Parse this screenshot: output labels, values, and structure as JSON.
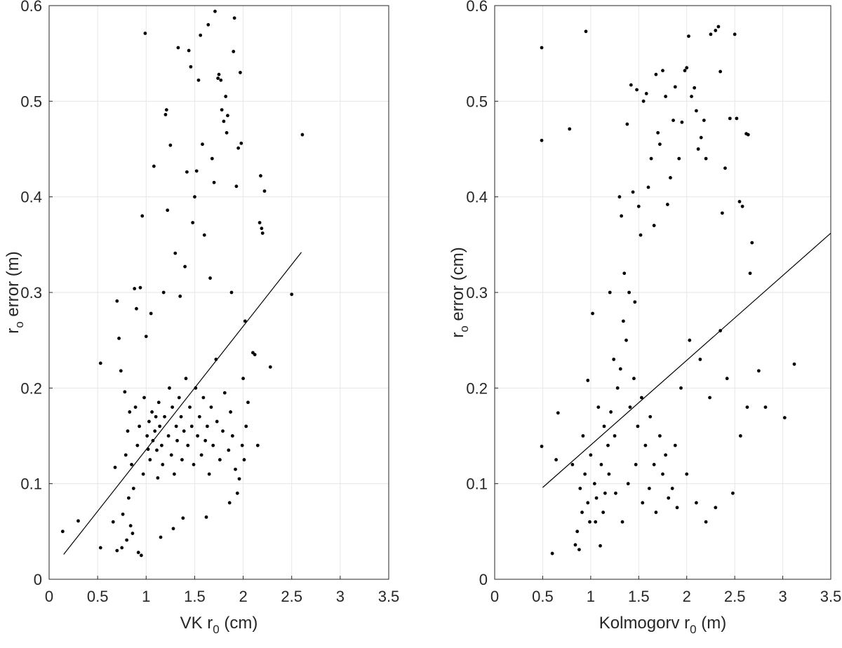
{
  "chart_data": [
    {
      "type": "scatter",
      "xlabel": "VK  r",
      "xlabel_sub": "0",
      "xlabel_unit": " (cm)",
      "ylabel": "r",
      "ylabel_sub": "o",
      "ylabel_rest": " error (m)",
      "xlim": [
        0,
        3.5
      ],
      "ylim": [
        0,
        0.6
      ],
      "xticks": [
        0,
        0.5,
        1,
        1.5,
        2,
        2.5,
        3,
        3.5
      ],
      "xtick_labels": [
        "0",
        "0.5",
        "1",
        "1.5",
        "2",
        "2.5",
        "3",
        "3.5"
      ],
      "yticks": [
        0,
        0.1,
        0.2,
        0.3,
        0.4,
        0.5,
        0.6
      ],
      "ytick_labels": [
        "0",
        "0.1",
        "0.2",
        "0.3",
        "0.4",
        "0.5",
        "0.6"
      ],
      "grid": true,
      "marker_color": "#000000",
      "line_color": "#000000",
      "fit_line": {
        "x": [
          0.15,
          2.6
        ],
        "y": [
          0.026,
          0.342
        ]
      },
      "points": [
        [
          0.14,
          0.05
        ],
        [
          0.3,
          0.061
        ],
        [
          0.53,
          0.033
        ],
        [
          0.53,
          0.226
        ],
        [
          0.66,
          0.06
        ],
        [
          0.68,
          0.117
        ],
        [
          0.7,
          0.291
        ],
        [
          0.72,
          0.252
        ],
        [
          0.74,
          0.218
        ],
        [
          0.75,
          0.033
        ],
        [
          0.78,
          0.196
        ],
        [
          0.8,
          0.041
        ],
        [
          0.82,
          0.085
        ],
        [
          0.84,
          0.056
        ],
        [
          0.86,
          0.048
        ],
        [
          0.88,
          0.304
        ],
        [
          0.9,
          0.283
        ],
        [
          0.92,
          0.028
        ],
        [
          0.94,
          0.305
        ],
        [
          0.95,
          0.025
        ],
        [
          0.96,
          0.38
        ],
        [
          0.99,
          0.571
        ],
        [
          1.0,
          0.254
        ],
        [
          1.02,
          0.136
        ],
        [
          1.05,
          0.278
        ],
        [
          1.08,
          0.432
        ],
        [
          1.1,
          0.17
        ],
        [
          1.12,
          0.106
        ],
        [
          1.15,
          0.044
        ],
        [
          1.18,
          0.3
        ],
        [
          1.2,
          0.486
        ],
        [
          1.21,
          0.491
        ],
        [
          1.22,
          0.386
        ],
        [
          1.25,
          0.454
        ],
        [
          1.28,
          0.053
        ],
        [
          1.3,
          0.341
        ],
        [
          1.33,
          0.556
        ],
        [
          1.35,
          0.296
        ],
        [
          1.38,
          0.064
        ],
        [
          1.4,
          0.327
        ],
        [
          1.42,
          0.426
        ],
        [
          1.44,
          0.553
        ],
        [
          1.46,
          0.536
        ],
        [
          1.48,
          0.373
        ],
        [
          1.5,
          0.4
        ],
        [
          1.52,
          0.427
        ],
        [
          1.54,
          0.522
        ],
        [
          1.56,
          0.569
        ],
        [
          1.58,
          0.455
        ],
        [
          1.6,
          0.36
        ],
        [
          1.62,
          0.065
        ],
        [
          1.64,
          0.58
        ],
        [
          1.66,
          0.315
        ],
        [
          1.68,
          0.44
        ],
        [
          1.7,
          0.415
        ],
        [
          1.71,
          0.594
        ],
        [
          1.72,
          0.23
        ],
        [
          1.74,
          0.524
        ],
        [
          1.75,
          0.528
        ],
        [
          1.77,
          0.522
        ],
        [
          1.78,
          0.491
        ],
        [
          1.8,
          0.479
        ],
        [
          1.82,
          0.505
        ],
        [
          1.83,
          0.467
        ],
        [
          1.84,
          0.485
        ],
        [
          1.86,
          0.08
        ],
        [
          1.88,
          0.3
        ],
        [
          1.9,
          0.552
        ],
        [
          1.91,
          0.587
        ],
        [
          1.93,
          0.411
        ],
        [
          1.95,
          0.451
        ],
        [
          1.97,
          0.53
        ],
        [
          1.98,
          0.456
        ],
        [
          2.0,
          0.21
        ],
        [
          2.02,
          0.27
        ],
        [
          2.05,
          0.185
        ],
        [
          2.1,
          0.237
        ],
        [
          2.12,
          0.235
        ],
        [
          2.15,
          0.14
        ],
        [
          2.17,
          0.373
        ],
        [
          2.18,
          0.422
        ],
        [
          2.19,
          0.367
        ],
        [
          2.2,
          0.362
        ],
        [
          2.22,
          0.406
        ],
        [
          2.28,
          0.222
        ],
        [
          2.5,
          0.298
        ],
        [
          2.61,
          0.465
        ],
        [
          1.96,
          0.105
        ],
        [
          1.94,
          0.09
        ],
        [
          2.01,
          0.125
        ],
        [
          0.7,
          0.03
        ],
        [
          0.76,
          0.068
        ],
        [
          0.79,
          0.13
        ],
        [
          0.81,
          0.155
        ],
        [
          0.83,
          0.175
        ],
        [
          0.85,
          0.12
        ],
        [
          0.87,
          0.095
        ],
        [
          0.89,
          0.18
        ],
        [
          0.91,
          0.14
        ],
        [
          0.93,
          0.16
        ],
        [
          0.97,
          0.11
        ],
        [
          0.98,
          0.19
        ],
        [
          1.01,
          0.15
        ],
        [
          1.03,
          0.165
        ],
        [
          1.04,
          0.125
        ],
        [
          1.06,
          0.175
        ],
        [
          1.07,
          0.145
        ],
        [
          1.09,
          0.155
        ],
        [
          1.11,
          0.135
        ],
        [
          1.13,
          0.185
        ],
        [
          1.14,
          0.16
        ],
        [
          1.16,
          0.14
        ],
        [
          1.17,
          0.12
        ],
        [
          1.19,
          0.17
        ],
        [
          1.23,
          0.15
        ],
        [
          1.24,
          0.2
        ],
        [
          1.26,
          0.13
        ],
        [
          1.27,
          0.18
        ],
        [
          1.29,
          0.11
        ],
        [
          1.31,
          0.16
        ],
        [
          1.32,
          0.145
        ],
        [
          1.34,
          0.19
        ],
        [
          1.36,
          0.17
        ],
        [
          1.37,
          0.125
        ],
        [
          1.39,
          0.155
        ],
        [
          1.41,
          0.21
        ],
        [
          1.43,
          0.14
        ],
        [
          1.45,
          0.18
        ],
        [
          1.47,
          0.16
        ],
        [
          1.49,
          0.12
        ],
        [
          1.51,
          0.2
        ],
        [
          1.53,
          0.15
        ],
        [
          1.55,
          0.17
        ],
        [
          1.57,
          0.13
        ],
        [
          1.59,
          0.19
        ],
        [
          1.61,
          0.145
        ],
        [
          1.63,
          0.16
        ],
        [
          1.65,
          0.11
        ],
        [
          1.67,
          0.18
        ],
        [
          1.69,
          0.14
        ],
        [
          1.73,
          0.165
        ],
        [
          1.76,
          0.125
        ],
        [
          1.79,
          0.155
        ],
        [
          1.81,
          0.195
        ],
        [
          1.85,
          0.135
        ],
        [
          1.87,
          0.175
        ],
        [
          1.89,
          0.15
        ],
        [
          1.92,
          0.115
        ],
        [
          1.99,
          0.14
        ],
        [
          2.03,
          0.16
        ]
      ]
    },
    {
      "type": "scatter",
      "xlabel": "Kolmogorv  r",
      "xlabel_sub": "0",
      "xlabel_unit": " (m)",
      "ylabel": "r",
      "ylabel_sub": "o",
      "ylabel_rest": " error (cm)",
      "xlim": [
        0,
        3.5
      ],
      "ylim": [
        0,
        0.6
      ],
      "xticks": [
        0,
        0.5,
        1,
        1.5,
        2,
        2.5,
        3,
        3.5
      ],
      "xtick_labels": [
        "0",
        "0.5",
        "1",
        "1.5",
        "2",
        "2.5",
        "3",
        "3.5"
      ],
      "yticks": [
        0,
        0.1,
        0.2,
        0.3,
        0.4,
        0.5,
        0.6
      ],
      "ytick_labels": [
        "0",
        "0.1",
        "0.2",
        "0.3",
        "0.4",
        "0.5",
        "0.6"
      ],
      "grid": true,
      "marker_color": "#000000",
      "line_color": "#000000",
      "fit_line": {
        "x": [
          0.5,
          3.5
        ],
        "y": [
          0.096,
          0.362
        ]
      },
      "points": [
        [
          0.49,
          0.556
        ],
        [
          0.49,
          0.459
        ],
        [
          0.49,
          0.139
        ],
        [
          0.6,
          0.027
        ],
        [
          0.64,
          0.125
        ],
        [
          0.66,
          0.174
        ],
        [
          0.78,
          0.471
        ],
        [
          0.81,
          0.12
        ],
        [
          0.84,
          0.036
        ],
        [
          0.88,
          0.031
        ],
        [
          0.95,
          0.573
        ],
        [
          0.97,
          0.208
        ],
        [
          1.02,
          0.278
        ],
        [
          1.05,
          0.06
        ],
        [
          1.1,
          0.035
        ],
        [
          1.15,
          0.09
        ],
        [
          1.2,
          0.3
        ],
        [
          1.25,
          0.15
        ],
        [
          1.3,
          0.4
        ],
        [
          1.32,
          0.38
        ],
        [
          1.35,
          0.32
        ],
        [
          1.38,
          0.476
        ],
        [
          1.4,
          0.3
        ],
        [
          1.42,
          0.517
        ],
        [
          1.44,
          0.405
        ],
        [
          1.46,
          0.29
        ],
        [
          1.48,
          0.512
        ],
        [
          1.5,
          0.39
        ],
        [
          1.52,
          0.36
        ],
        [
          1.55,
          0.5
        ],
        [
          1.58,
          0.508
        ],
        [
          1.6,
          0.41
        ],
        [
          1.63,
          0.44
        ],
        [
          1.66,
          0.37
        ],
        [
          1.68,
          0.528
        ],
        [
          1.7,
          0.467
        ],
        [
          1.72,
          0.455
        ],
        [
          1.75,
          0.532
        ],
        [
          1.78,
          0.505
        ],
        [
          1.8,
          0.392
        ],
        [
          1.83,
          0.42
        ],
        [
          1.86,
          0.48
        ],
        [
          1.88,
          0.515
        ],
        [
          1.92,
          0.44
        ],
        [
          1.95,
          0.478
        ],
        [
          1.98,
          0.532
        ],
        [
          2.0,
          0.535
        ],
        [
          2.02,
          0.568
        ],
        [
          2.05,
          0.505
        ],
        [
          2.08,
          0.514
        ],
        [
          2.1,
          0.49
        ],
        [
          2.12,
          0.45
        ],
        [
          2.15,
          0.462
        ],
        [
          2.18,
          0.48
        ],
        [
          2.2,
          0.44
        ],
        [
          2.25,
          0.57
        ],
        [
          2.3,
          0.574
        ],
        [
          2.33,
          0.578
        ],
        [
          2.35,
          0.531
        ],
        [
          2.37,
          0.383
        ],
        [
          2.4,
          0.43
        ],
        [
          2.45,
          0.482
        ],
        [
          2.5,
          0.57
        ],
        [
          2.52,
          0.482
        ],
        [
          2.55,
          0.395
        ],
        [
          2.58,
          0.39
        ],
        [
          2.62,
          0.466
        ],
        [
          2.64,
          0.465
        ],
        [
          2.66,
          0.32
        ],
        [
          2.68,
          0.352
        ],
        [
          2.75,
          0.218
        ],
        [
          2.82,
          0.18
        ],
        [
          3.02,
          0.169
        ],
        [
          3.12,
          0.225
        ],
        [
          2.48,
          0.09
        ],
        [
          2.3,
          0.075
        ],
        [
          2.2,
          0.06
        ],
        [
          2.1,
          0.08
        ],
        [
          2.0,
          0.11
        ],
        [
          1.9,
          0.075
        ],
        [
          1.85,
          0.095
        ],
        [
          1.78,
          0.13
        ],
        [
          1.72,
          0.15
        ],
        [
          1.66,
          0.12
        ],
        [
          1.62,
          0.17
        ],
        [
          1.57,
          0.14
        ],
        [
          1.53,
          0.19
        ],
        [
          1.49,
          0.16
        ],
        [
          1.45,
          0.21
        ],
        [
          1.41,
          0.18
        ],
        [
          1.37,
          0.25
        ],
        [
          1.34,
          0.27
        ],
        [
          1.31,
          0.22
        ],
        [
          1.28,
          0.2
        ],
        [
          1.24,
          0.23
        ],
        [
          1.21,
          0.175
        ],
        [
          1.18,
          0.14
        ],
        [
          1.14,
          0.16
        ],
        [
          1.11,
          0.12
        ],
        [
          1.08,
          0.18
        ],
        [
          1.04,
          0.1
        ],
        [
          1.0,
          0.13
        ],
        [
          0.97,
          0.08
        ],
        [
          0.94,
          0.11
        ],
        [
          0.91,
          0.07
        ],
        [
          0.89,
          0.095
        ],
        [
          0.86,
          0.05
        ],
        [
          0.92,
          0.15
        ],
        [
          0.99,
          0.06
        ],
        [
          1.06,
          0.085
        ],
        [
          1.13,
          0.07
        ],
        [
          1.19,
          0.11
        ],
        [
          1.26,
          0.09
        ],
        [
          1.33,
          0.06
        ],
        [
          1.39,
          0.1
        ],
        [
          1.47,
          0.12
        ],
        [
          1.54,
          0.08
        ],
        [
          1.61,
          0.095
        ],
        [
          1.68,
          0.07
        ],
        [
          1.75,
          0.11
        ],
        [
          1.81,
          0.085
        ],
        [
          1.88,
          0.14
        ],
        [
          1.94,
          0.2
        ],
        [
          2.03,
          0.25
        ],
        [
          2.14,
          0.23
        ],
        [
          2.24,
          0.19
        ],
        [
          2.35,
          0.26
        ],
        [
          2.42,
          0.21
        ],
        [
          2.56,
          0.15
        ],
        [
          2.63,
          0.18
        ]
      ]
    }
  ]
}
